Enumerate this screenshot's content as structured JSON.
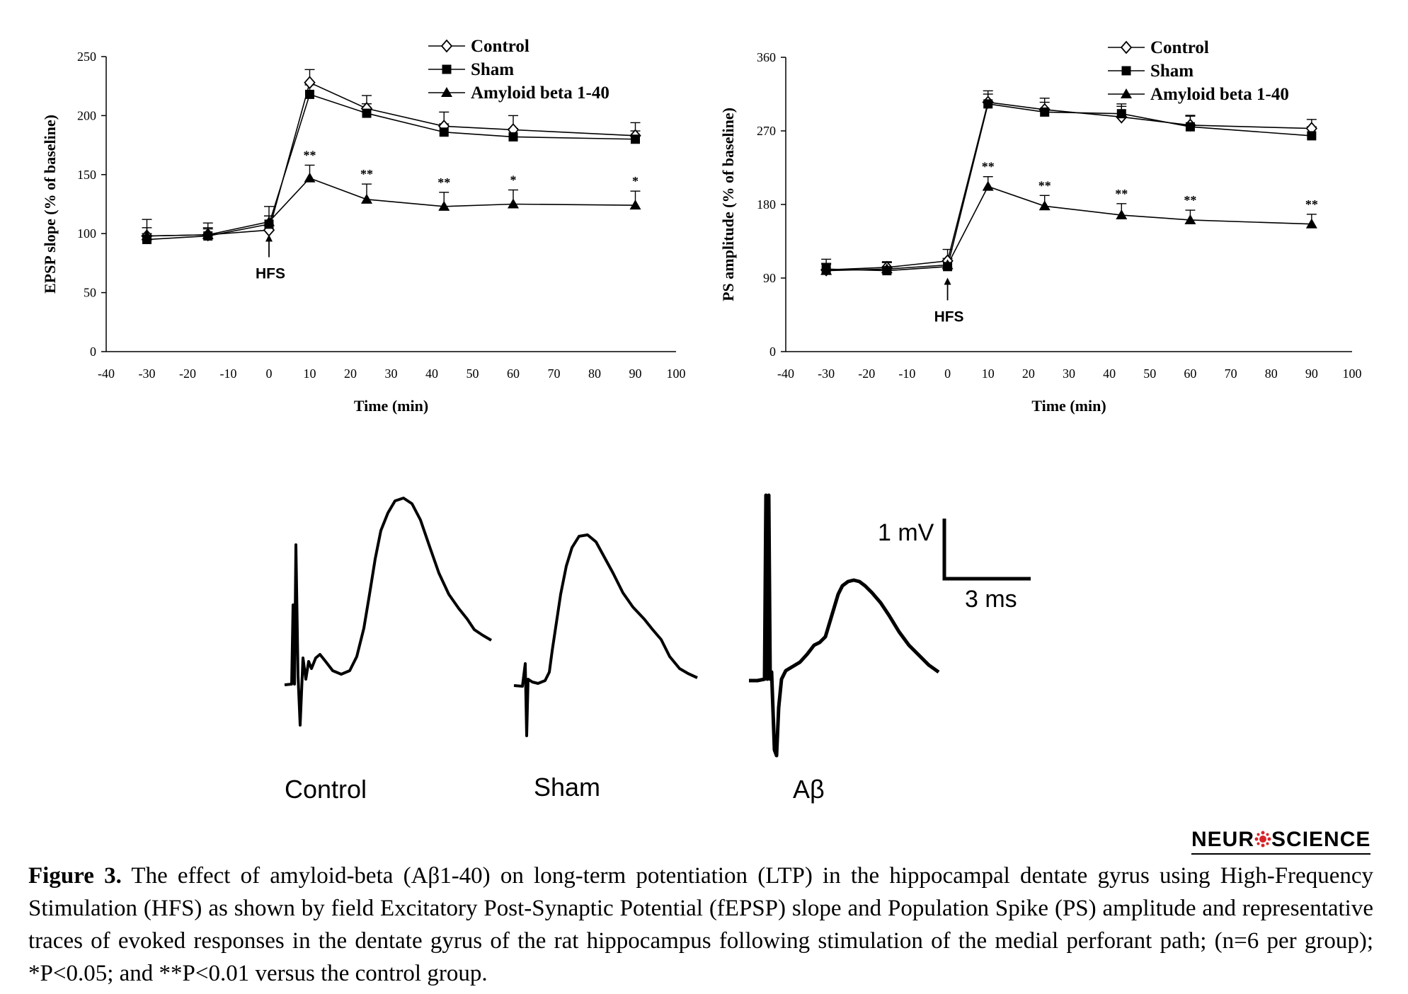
{
  "chart_data": [
    {
      "type": "line",
      "ylabel": "EPSP slope (% of baseline)",
      "xlabel": "Time (min)",
      "xlim": [
        -40,
        100
      ],
      "ylim": [
        0,
        250
      ],
      "xticks": [
        -40,
        -30,
        -20,
        -10,
        0,
        10,
        20,
        30,
        40,
        50,
        60,
        70,
        80,
        90,
        100
      ],
      "yticks": [
        0,
        50,
        100,
        150,
        200,
        250
      ],
      "grid": false,
      "legend_position": "top-right",
      "annotation": {
        "label": "HFS",
        "x": 0
      },
      "series": [
        {
          "name": "Control",
          "marker": "open-diamond",
          "x": [
            -30,
            -15,
            0,
            10,
            24,
            43,
            60,
            90
          ],
          "y": [
            98,
            99,
            103,
            228,
            206,
            191,
            188,
            183
          ],
          "err": [
            7,
            5,
            12,
            11,
            11,
            12,
            12,
            11
          ]
        },
        {
          "name": "Sham",
          "marker": "filled-square",
          "x": [
            -30,
            -15,
            0,
            10,
            24,
            43,
            60,
            90
          ],
          "y": [
            95,
            98,
            108,
            218,
            202,
            186,
            182,
            180
          ],
          "err": [
            5,
            7,
            7,
            8,
            8,
            7,
            7,
            7
          ]
        },
        {
          "name": "Amyloid beta 1-40",
          "marker": "filled-triangle",
          "x": [
            -30,
            -15,
            0,
            10,
            24,
            43,
            60,
            90
          ],
          "y": [
            98,
            99,
            110,
            147,
            129,
            123,
            125,
            124
          ],
          "err": [
            14,
            10,
            13,
            11,
            13,
            12,
            12,
            12
          ],
          "significance": [
            "",
            "",
            "",
            "**",
            "**",
            "**",
            "*",
            "*"
          ]
        }
      ]
    },
    {
      "type": "line",
      "ylabel": "PS amplitude (% of baseline)",
      "xlabel": "Time (min)",
      "xlim": [
        -40,
        100
      ],
      "ylim": [
        0,
        360
      ],
      "xticks": [
        -40,
        -30,
        -20,
        -10,
        0,
        10,
        20,
        30,
        40,
        50,
        60,
        70,
        80,
        90,
        100
      ],
      "yticks": [
        0,
        90,
        180,
        270,
        360
      ],
      "grid": false,
      "legend_position": "top-right",
      "annotation": {
        "label": "HFS",
        "x": 0
      },
      "series": [
        {
          "name": "Control",
          "marker": "open-diamond",
          "x": [
            -30,
            -15,
            0,
            10,
            24,
            43,
            60,
            90
          ],
          "y": [
            100,
            103,
            111,
            305,
            296,
            287,
            277,
            273
          ],
          "err": [
            8,
            7,
            14,
            14,
            14,
            13,
            12,
            11
          ]
        },
        {
          "name": "Sham",
          "marker": "filled-square",
          "x": [
            -30,
            -15,
            0,
            10,
            24,
            43,
            60,
            90
          ],
          "y": [
            101,
            99,
            104,
            303,
            293,
            291,
            275,
            264
          ],
          "err": [
            12,
            10,
            8,
            12,
            12,
            12,
            13,
            11
          ]
        },
        {
          "name": "Amyloid beta 1-40",
          "marker": "filled-triangle",
          "x": [
            -30,
            -15,
            0,
            10,
            24,
            43,
            60,
            90
          ],
          "y": [
            99,
            101,
            106,
            202,
            178,
            167,
            161,
            156
          ],
          "err": [
            8,
            8,
            8,
            12,
            13,
            14,
            12,
            12
          ],
          "significance": [
            "",
            "",
            "",
            "**",
            "**",
            "**",
            "**",
            "**"
          ]
        }
      ]
    }
  ],
  "traces": {
    "labels": [
      "Control",
      "Sham",
      "Aβ"
    ],
    "scale_bar": {
      "voltage": "1 mV",
      "time": "3 ms"
    }
  },
  "journal_logo": {
    "left": "NEUR",
    "right": "SCIENCE"
  },
  "caption": {
    "label": "Figure 3.",
    "text": " The effect of amyloid-beta (Aβ1-40) on long-term potentiation (LTP) in the hippocampal dentate gyrus using High-Frequency Stimulation (HFS) as shown by field Excitatory Post-Synaptic Potential (fEPSP) slope and Population Spike (PS) amplitude and representative traces of evoked responses in the dentate gyrus of the rat hippocampus following stimulation of the medial perforant path; (n=6 per group); *P<0.05; and **P<0.01 versus the control group."
  }
}
